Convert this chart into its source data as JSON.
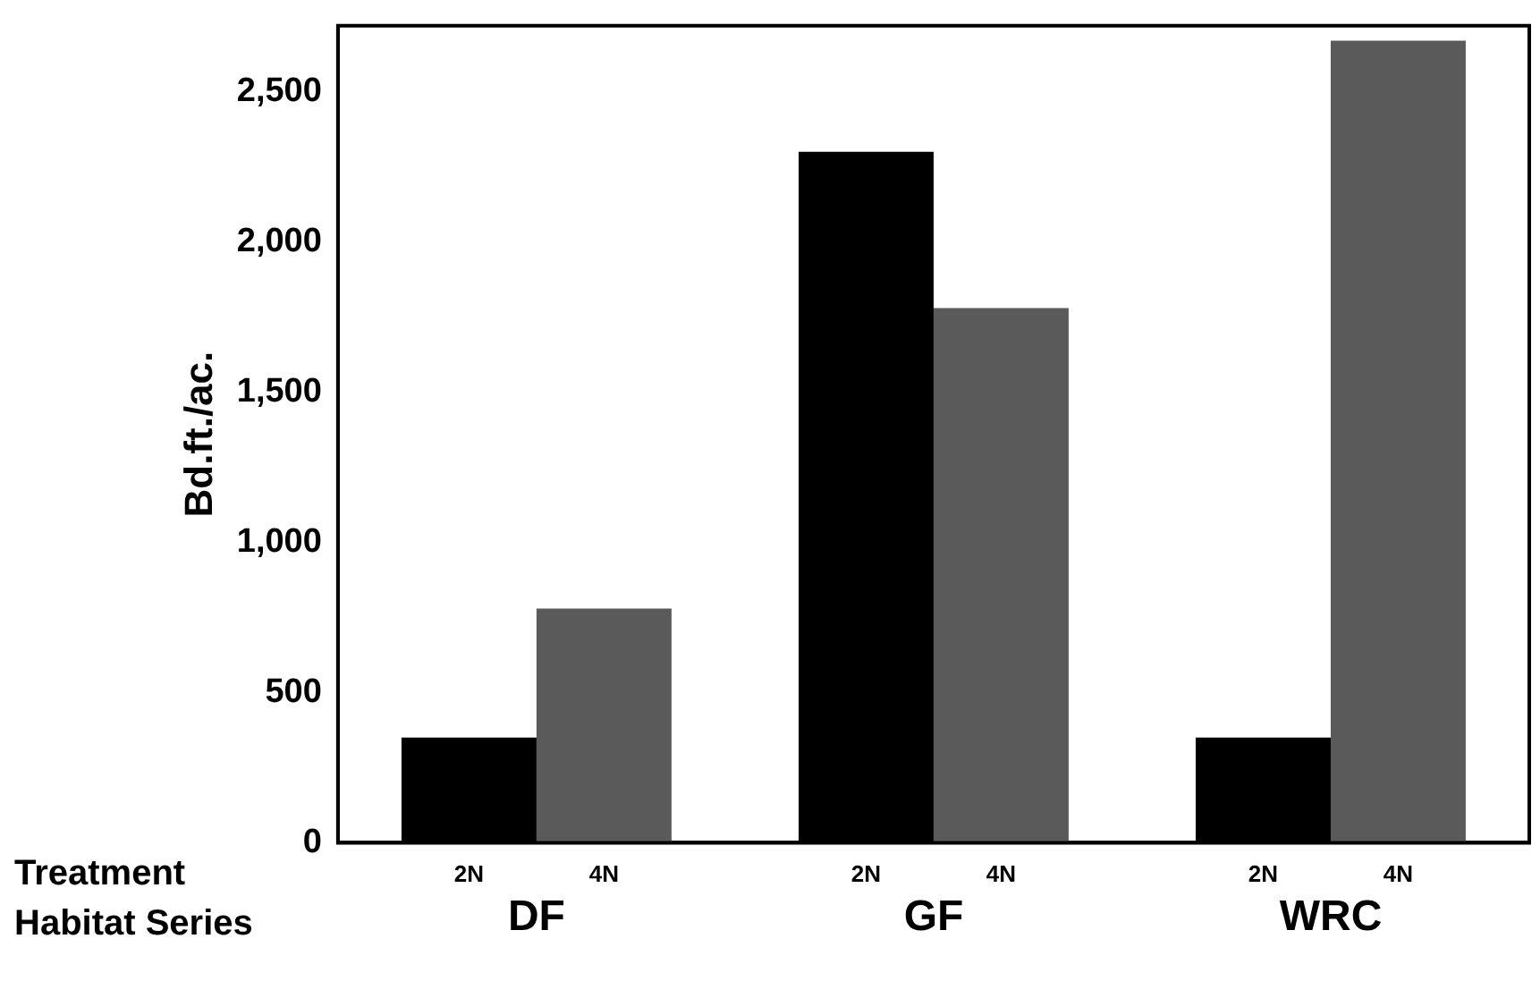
{
  "chart_data": {
    "type": "bar",
    "ylabel": "Bd.ft./ac.",
    "categories": [
      "DF",
      "GF",
      "WRC"
    ],
    "series": [
      {
        "name": "2N",
        "color": "#000000",
        "values": [
          350,
          2300,
          350
        ]
      },
      {
        "name": "4N",
        "color": "#5a5a5a",
        "values": [
          780,
          1780,
          2670
        ]
      }
    ],
    "ylim": [
      0,
      2720
    ],
    "yticks": [
      0,
      500,
      {
        "value": 1000,
        "label": "1,000"
      },
      {
        "value": 1500,
        "label": "1,500"
      },
      {
        "value": 2000,
        "label": "2,000"
      },
      {
        "value": 2500,
        "label": "2,500"
      }
    ],
    "grid": false,
    "legend": false,
    "annotations": [
      "Treatment",
      "Habitat Series"
    ]
  }
}
